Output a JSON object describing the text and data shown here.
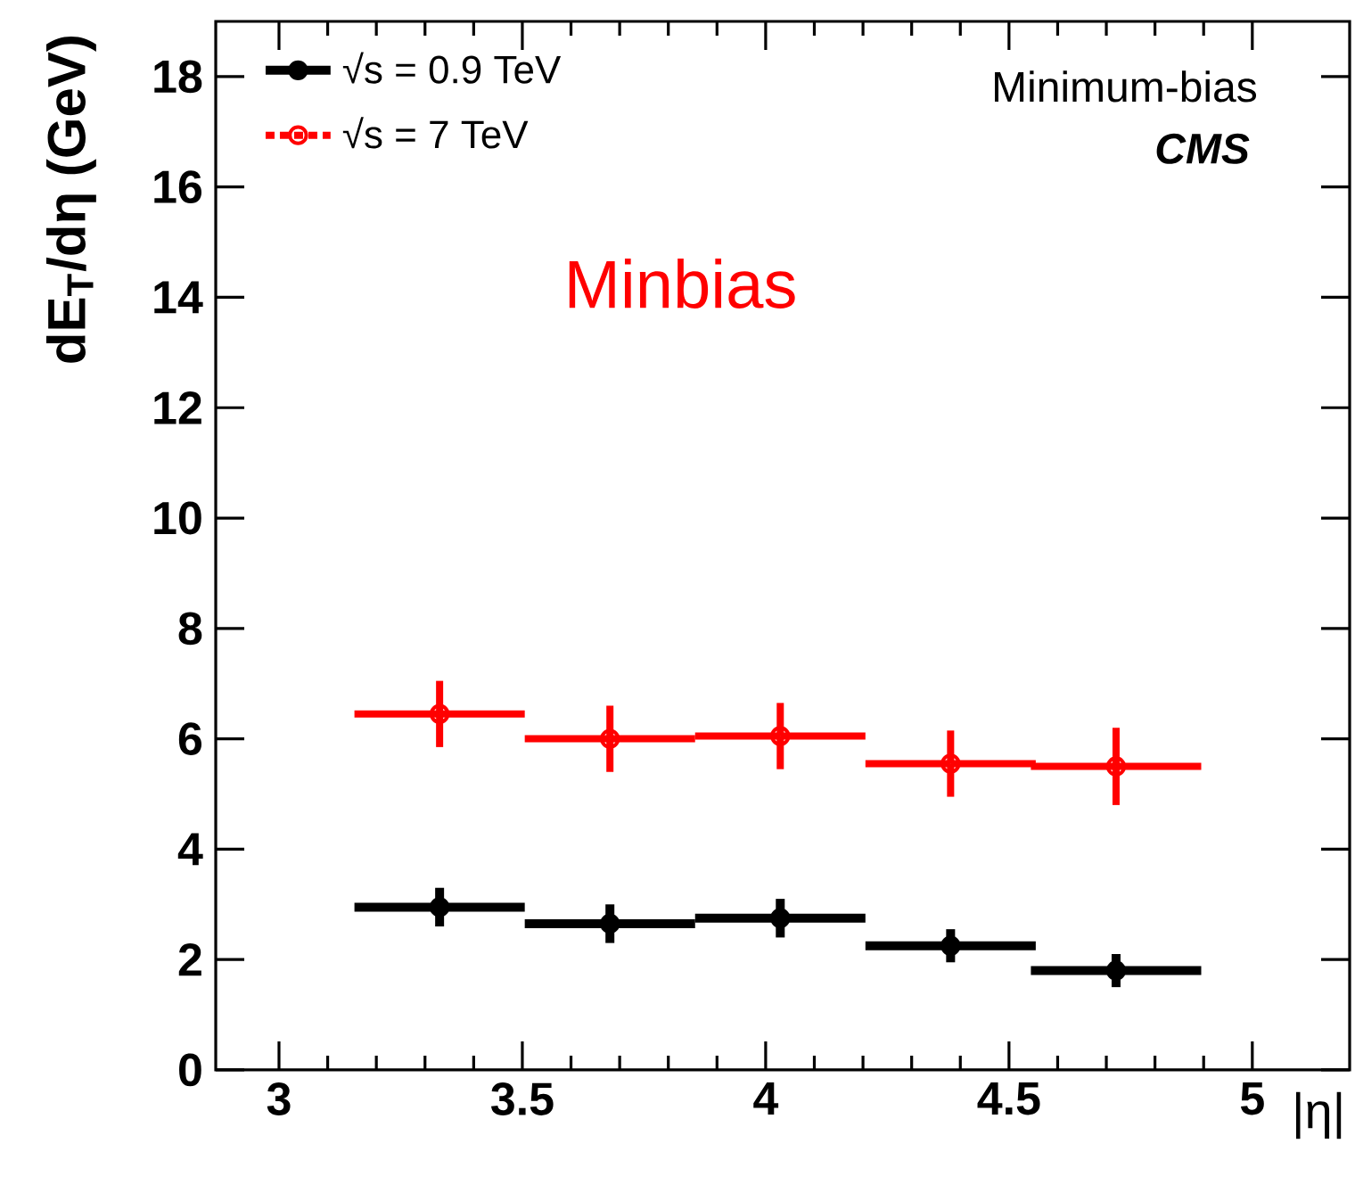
{
  "chart_data": {
    "type": "scatter",
    "xlabel": "|η|",
    "ylabel": "dE$_{T}$/dη (GeV)",
    "x": [
      3.33,
      3.68,
      4.03,
      4.38,
      4.72
    ],
    "series": [
      {
        "name": "√s = 0.9 TeV",
        "color": "#000000",
        "marker": "circle",
        "line_style": "solid",
        "values": [
          2.95,
          2.65,
          2.75,
          2.25,
          1.8
        ],
        "errors": [
          0.35,
          0.35,
          0.35,
          0.3,
          0.3
        ],
        "xerrors": [
          0.175,
          0.175,
          0.175,
          0.175,
          0.175
        ]
      },
      {
        "name": "√s = 7 TeV",
        "color": "#ff0000",
        "marker": "circle",
        "line_style": "dotted",
        "values": [
          6.45,
          6.0,
          6.05,
          5.55,
          5.5
        ],
        "errors": [
          0.6,
          0.6,
          0.6,
          0.6,
          0.7
        ],
        "xerrors": [
          0.175,
          0.175,
          0.175,
          0.175,
          0.175
        ]
      }
    ],
    "xlim": [
      2.87,
      5.2
    ],
    "ylim": [
      0,
      19
    ],
    "xticks": [
      3,
      3.5,
      4,
      4.5,
      5
    ],
    "yticks": [
      0,
      2,
      4,
      6,
      8,
      10,
      12,
      14,
      16,
      18
    ],
    "grid": false,
    "legend": "top left",
    "annotations": [
      "Minimum-bias",
      "CMS",
      "Minbias"
    ]
  }
}
